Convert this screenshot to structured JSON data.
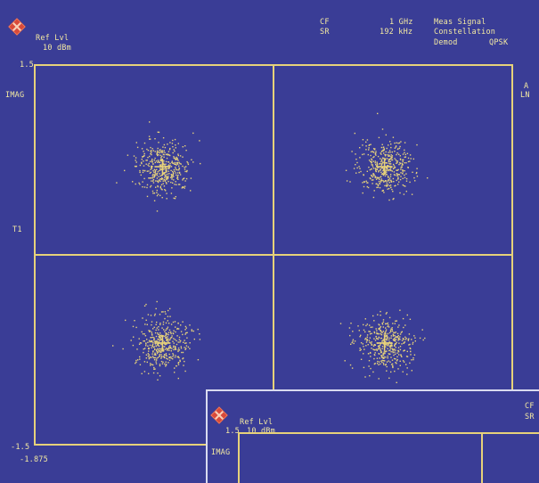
{
  "header": {
    "ref_lvl_label": "Ref Lvl",
    "ref_lvl_value": "10 dBm",
    "cf_label": "CF",
    "sr_label": "SR",
    "cf_value": "1 GHz",
    "sr_value": "192 kHz",
    "meas_signal": "Meas Signal",
    "constellation": "Constellation",
    "demod_label": "Demod",
    "demod_value": "QPSK"
  },
  "left_axis": {
    "top_value": "1.5",
    "mag_label": "IMAG",
    "t1_label": "T1",
    "bottom_value": "-1.5",
    "x_start": "-1.875"
  },
  "right_axis": {
    "trace_label": "A",
    "scale_label": "LN"
  },
  "overlay_window": {
    "ref_lvl_label": "Ref Lvl",
    "ref_lvl_value": "10 dBm",
    "top_value": "1.5",
    "mag_label": "IMAG",
    "cf_label": "CF",
    "sr_label": "SR"
  },
  "colors": {
    "background": "#3a3d96",
    "trace": "#e7d27a",
    "text": "#f3e9a2",
    "logo": "#d84a3a"
  },
  "chart_data": {
    "type": "scatter",
    "title": "",
    "xlabel": "",
    "ylabel": "IMAG",
    "ylim": [
      -1.5,
      1.5
    ],
    "clusters": [
      {
        "x": -0.7,
        "y": 0.7
      },
      {
        "x": 0.7,
        "y": 0.7
      },
      {
        "x": -0.7,
        "y": -0.7
      },
      {
        "x": 0.7,
        "y": -0.7
      }
    ]
  }
}
